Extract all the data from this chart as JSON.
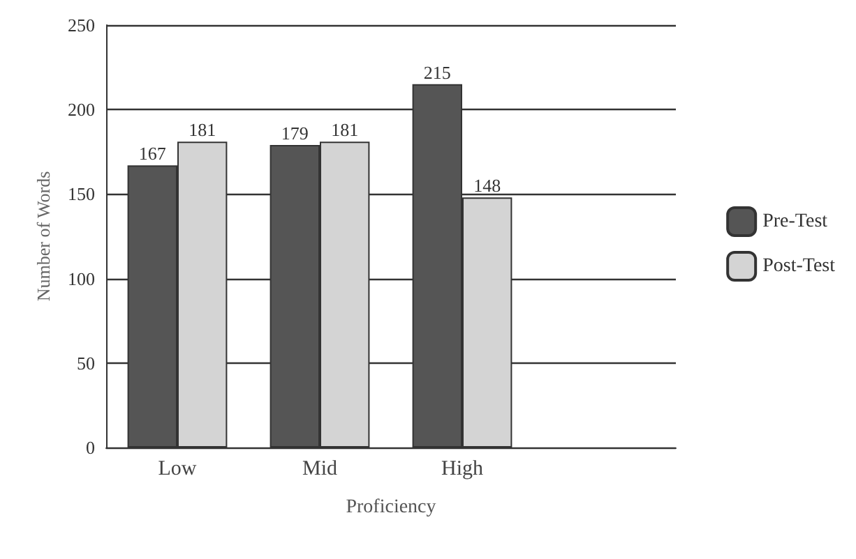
{
  "chart_data": {
    "type": "bar",
    "xlabel": "Proficiency",
    "ylabel": "Number of Words",
    "categories": [
      "Low",
      "Mid",
      "High",
      null
    ],
    "series": [
      {
        "name": "Pre-Test",
        "color": "#555555",
        "values": [
          167,
          179,
          215,
          null
        ]
      },
      {
        "name": "Post-Test",
        "color": "#d4d4d4",
        "values": [
          181,
          181,
          148,
          null
        ]
      }
    ],
    "ylim": [
      0,
      250
    ],
    "yticks": [
      0,
      50,
      100,
      150,
      200,
      250
    ],
    "grid": "y",
    "legend": "right",
    "data_labels": true
  }
}
